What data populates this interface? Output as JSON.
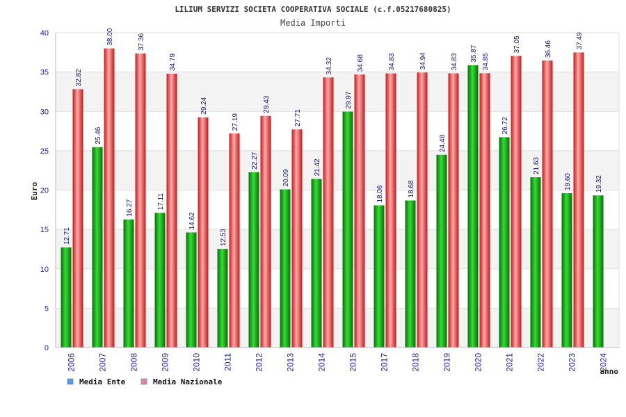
{
  "chart_data": {
    "type": "bar",
    "title": "LILIUM SERVIZI SOCIETA COOPERATIVA SOCIALE (c.f.05217680825)",
    "subtitle": "Media Importi",
    "xlabel": "anno",
    "ylabel": "Euro",
    "ylim": [
      0,
      40
    ],
    "yticks": [
      0,
      5,
      10,
      15,
      20,
      25,
      30,
      35,
      40
    ],
    "grid": true,
    "legend_position": "bottom-left",
    "categories": [
      "2006",
      "2007",
      "2008",
      "2009",
      "2010",
      "2011",
      "2012",
      "2013",
      "2014",
      "2015",
      "2017",
      "2018",
      "2019",
      "2020",
      "2021",
      "2022",
      "2023",
      "2024"
    ],
    "series": [
      {
        "name": "Media Ente",
        "legend_color": "#5599ee",
        "bar_color": "#22aa22",
        "values": [
          12.71,
          25.46,
          16.27,
          17.11,
          14.62,
          12.53,
          22.27,
          20.09,
          21.42,
          29.97,
          18.06,
          18.68,
          24.48,
          35.87,
          26.72,
          21.63,
          19.6,
          19.32
        ],
        "labels": [
          "12.71",
          "25.46",
          "16.27",
          "17.11",
          "14.62",
          "12.53",
          "22.27",
          "20.09",
          "21.42",
          "29.97",
          "18.06",
          "18.68",
          "24.48",
          "35.87",
          "26.72",
          "21.63",
          "19.60",
          "19.32"
        ]
      },
      {
        "name": "Media Nazionale",
        "legend_color": "#dd88aa",
        "bar_color": "#ee2222",
        "values": [
          32.82,
          38.0,
          37.36,
          34.79,
          29.24,
          27.19,
          29.43,
          27.71,
          34.32,
          34.68,
          34.83,
          34.94,
          34.83,
          34.85,
          37.05,
          36.46,
          37.49,
          null
        ],
        "labels": [
          "32.82",
          "38.00",
          "37.36",
          "34.79",
          "29.24",
          "27.19",
          "29.43",
          "27.71",
          "34.32",
          "34.68",
          "34.83",
          "34.94",
          "34.83",
          "34.85",
          "37.05",
          "36.46",
          "37.49",
          ""
        ]
      }
    ]
  }
}
